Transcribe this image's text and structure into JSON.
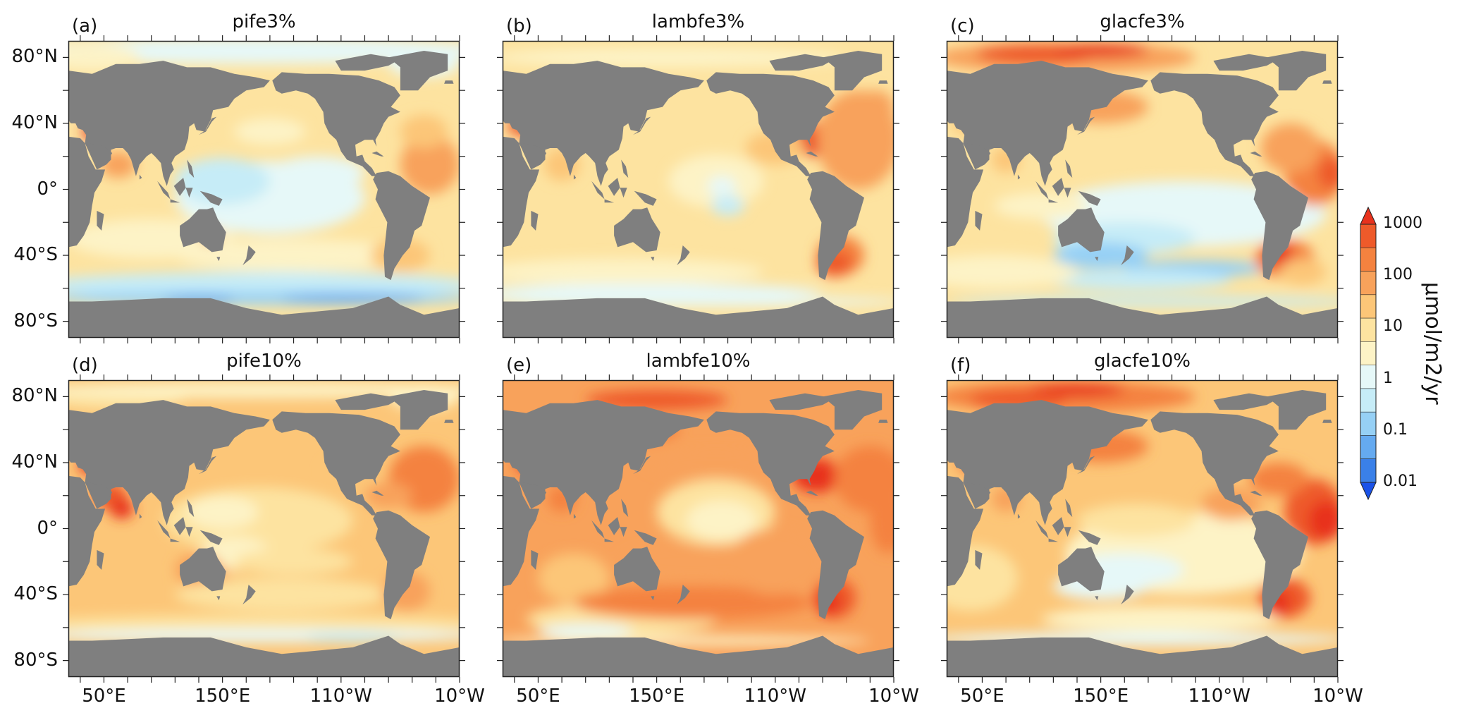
{
  "figure": {
    "panels": [
      {
        "label": "(a)",
        "title": "pife3%",
        "variant": "a"
      },
      {
        "label": "(b)",
        "title": "lambfe3%",
        "variant": "b"
      },
      {
        "label": "(c)",
        "title": "glacfe3%",
        "variant": "c"
      },
      {
        "label": "(d)",
        "title": "pife10%",
        "variant": "d"
      },
      {
        "label": "(e)",
        "title": "lambfe10%",
        "variant": "e"
      },
      {
        "label": "(f)",
        "title": "glacfe10%",
        "variant": "f"
      }
    ],
    "y_tick_labels": [
      "80°N",
      "40°N",
      "0°",
      "40°S",
      "80°S"
    ],
    "x_tick_labels": [
      "50°E",
      "150°E",
      "110°W",
      "10°W"
    ],
    "land_color": "#7f7f7f",
    "colorbar": {
      "tick_labels": [
        "1000",
        "100",
        "10",
        "1",
        "0.1",
        "0.01"
      ],
      "unit": "μmol/m2/yr",
      "colors": [
        "#1a52e8",
        "#3a80e8",
        "#65aaf0",
        "#96d0f5",
        "#c6ecf7",
        "#e6f8f8",
        "#fdf3c6",
        "#fde3a0",
        "#fcc678",
        "#f8a25b",
        "#f4823f",
        "#ee5a2a",
        "#e8321d"
      ]
    }
  }
}
